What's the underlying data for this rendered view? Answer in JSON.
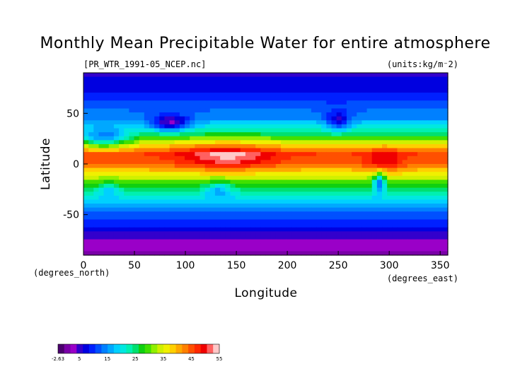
{
  "chart_data": {
    "type": "heatmap",
    "title": "Monthly Mean Precipitable Water for entire atmosphere",
    "source_label": "[PR_WTR_1991-05_NCEP.nc]",
    "units_label": "(units:kg/m^2)",
    "xlabel": "Longitude",
    "ylabel": "Latitude",
    "x_unit_label": "(degrees_east)",
    "y_unit_label": "(degrees_north)",
    "xlim": [
      0,
      357.5
    ],
    "ylim": [
      -90,
      90
    ],
    "x_ticks": [
      "0",
      "50",
      "100",
      "150",
      "200",
      "250",
      "300",
      "350"
    ],
    "x_tick_values": [
      0,
      50,
      100,
      150,
      200,
      250,
      300,
      350
    ],
    "y_ticks": [
      "50",
      "0",
      "-50"
    ],
    "y_tick_values": [
      50,
      0,
      -50
    ],
    "colorbar": {
      "min": -2.63,
      "max": 55,
      "tick_labels": [
        "-2.63",
        "5",
        "15",
        "25",
        "35",
        "45",
        "55"
      ],
      "tick_values": [
        -2.63,
        5,
        15,
        25,
        35,
        45,
        55
      ],
      "colors": [
        "#4b006e",
        "#7a00a8",
        "#9a00c8",
        "#3300cc",
        "#0000e0",
        "#0020ff",
        "#0050ff",
        "#0080ff",
        "#00a8ff",
        "#00d0ff",
        "#00e8e0",
        "#00f0b0",
        "#00e070",
        "#10d010",
        "#40e000",
        "#90f000",
        "#d0f000",
        "#f0f000",
        "#ffd000",
        "#ffa800",
        "#ff8000",
        "#ff5000",
        "#ff2800",
        "#f00000",
        "#ff6060",
        "#ffc8c8"
      ]
    },
    "zonal_profile": {
      "lat": [
        -90,
        -75,
        -60,
        -45,
        -30,
        -15,
        0,
        10,
        20,
        30,
        45,
        60,
        75,
        90
      ],
      "value": [
        1,
        4,
        9,
        14,
        22,
        32,
        44,
        46,
        36,
        25,
        15,
        11,
        7,
        6
      ]
    }
  }
}
